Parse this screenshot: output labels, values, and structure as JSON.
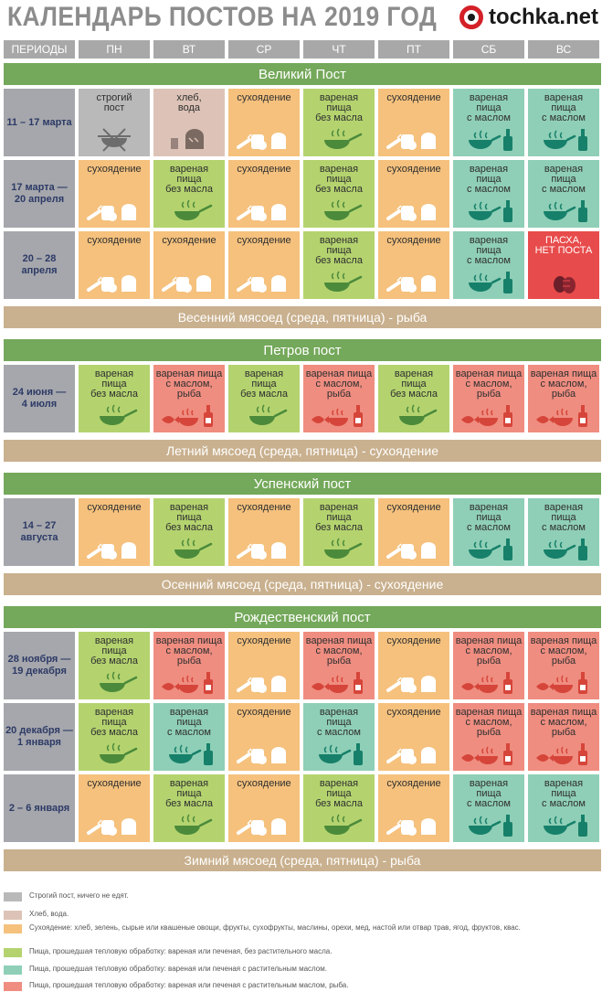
{
  "title": "КАЛЕНДАРЬ ПОСТОВ НА 2019 ГОД",
  "brand": "tochka.net",
  "headers": [
    "ПЕРИОДЫ",
    "ПН",
    "ВТ",
    "СР",
    "ЧТ",
    "ПТ",
    "СБ",
    "ВС"
  ],
  "sections": [
    {
      "name": "Великий Пост",
      "rows": [
        {
          "period": "11 – 17 марта",
          "cells": [
            "strict",
            "bread",
            "dry",
            "cooked",
            "dry",
            "oil",
            "oil"
          ]
        },
        {
          "period": "17 марта —\n20 апреля",
          "cells": [
            "dry",
            "cooked",
            "dry",
            "cooked",
            "dry",
            "oil",
            "oil"
          ]
        },
        {
          "period": "20 – 28 апреля",
          "cells": [
            "dry",
            "dry",
            "dry",
            "cooked",
            "dry",
            "oil",
            "easter"
          ]
        }
      ],
      "meat": "Весенний мясоед (среда, пятница) - рыба"
    },
    {
      "name": "Петров пост",
      "rows": [
        {
          "period": "24 июня —\n4 июля",
          "cells": [
            "cooked",
            "fish",
            "cooked",
            "fish",
            "cooked",
            "fish",
            "fish"
          ]
        }
      ],
      "meat": "Летний мясоед (среда, пятница) - сухоядение"
    },
    {
      "name": "Успенский пост",
      "rows": [
        {
          "period": "14 – 27\nавгуста",
          "cells": [
            "dry",
            "cooked",
            "dry",
            "cooked",
            "dry",
            "oil",
            "oil"
          ]
        }
      ],
      "meat": "Осенний мясоед (среда, пятница) - сухоядение"
    },
    {
      "name": "Рождественский пост",
      "rows": [
        {
          "period": "28 ноября —\n19 декабря",
          "cells": [
            "cooked",
            "fish",
            "dry",
            "fish",
            "dry",
            "fish",
            "fish"
          ]
        },
        {
          "period": "20 декабря —\n1 января",
          "cells": [
            "cooked",
            "oil",
            "dry",
            "oil",
            "dry",
            "fish",
            "fish"
          ]
        },
        {
          "period": "2 – 6 января",
          "cells": [
            "dry",
            "cooked",
            "dry",
            "cooked",
            "dry",
            "oil",
            "oil"
          ]
        }
      ],
      "meat": "Зимний мясоед (среда, пятница) - рыба"
    }
  ],
  "cell_labels": {
    "strict": "строгий\nпост",
    "bread": "хлеб,\nвода",
    "dry": "сухоядение",
    "cooked": "вареная\nпища\nбез масла",
    "oil": "вареная\nпища\nс маслом",
    "fish": "вареная пища\nс маслом,\nрыба",
    "easter": "ПАСХА,\nНЕТ ПОСТА"
  },
  "colors": {
    "strict": "#b9b9b9",
    "bread": "#ddc3b7",
    "dry": "#f5c17d",
    "cooked": "#b4d36f",
    "oil": "#8fcfb7",
    "fish": "#ef8d80",
    "easter": "#e84b4b",
    "band": "#74a85a",
    "meat": "#c9b08e"
  },
  "legend": [
    {
      "type": "strict",
      "text": "Строгий пост, ничего не едят."
    },
    {
      "type": "bread",
      "text": "Хлеб, вода."
    },
    {
      "type": "dry",
      "text": "Сухоядение: хлеб, зелень, сырые или квашеные овощи, фрукты, сухофрукты, маслины, орехи, мед, настой или отвар трав, ягод, фруктов, квас."
    },
    {
      "type": "cooked",
      "text": "Пища, прошедшая тепловую обработку: вареная или печеная, без растительного масла."
    },
    {
      "type": "oil",
      "text": "Пища, прошедшая тепловую обработку: вареная или печеная с растительным маслом."
    },
    {
      "type": "fish",
      "text": "Пища, прошедшая тепловую обработку: вареная или печеная с растительным маслом, рыба."
    }
  ]
}
